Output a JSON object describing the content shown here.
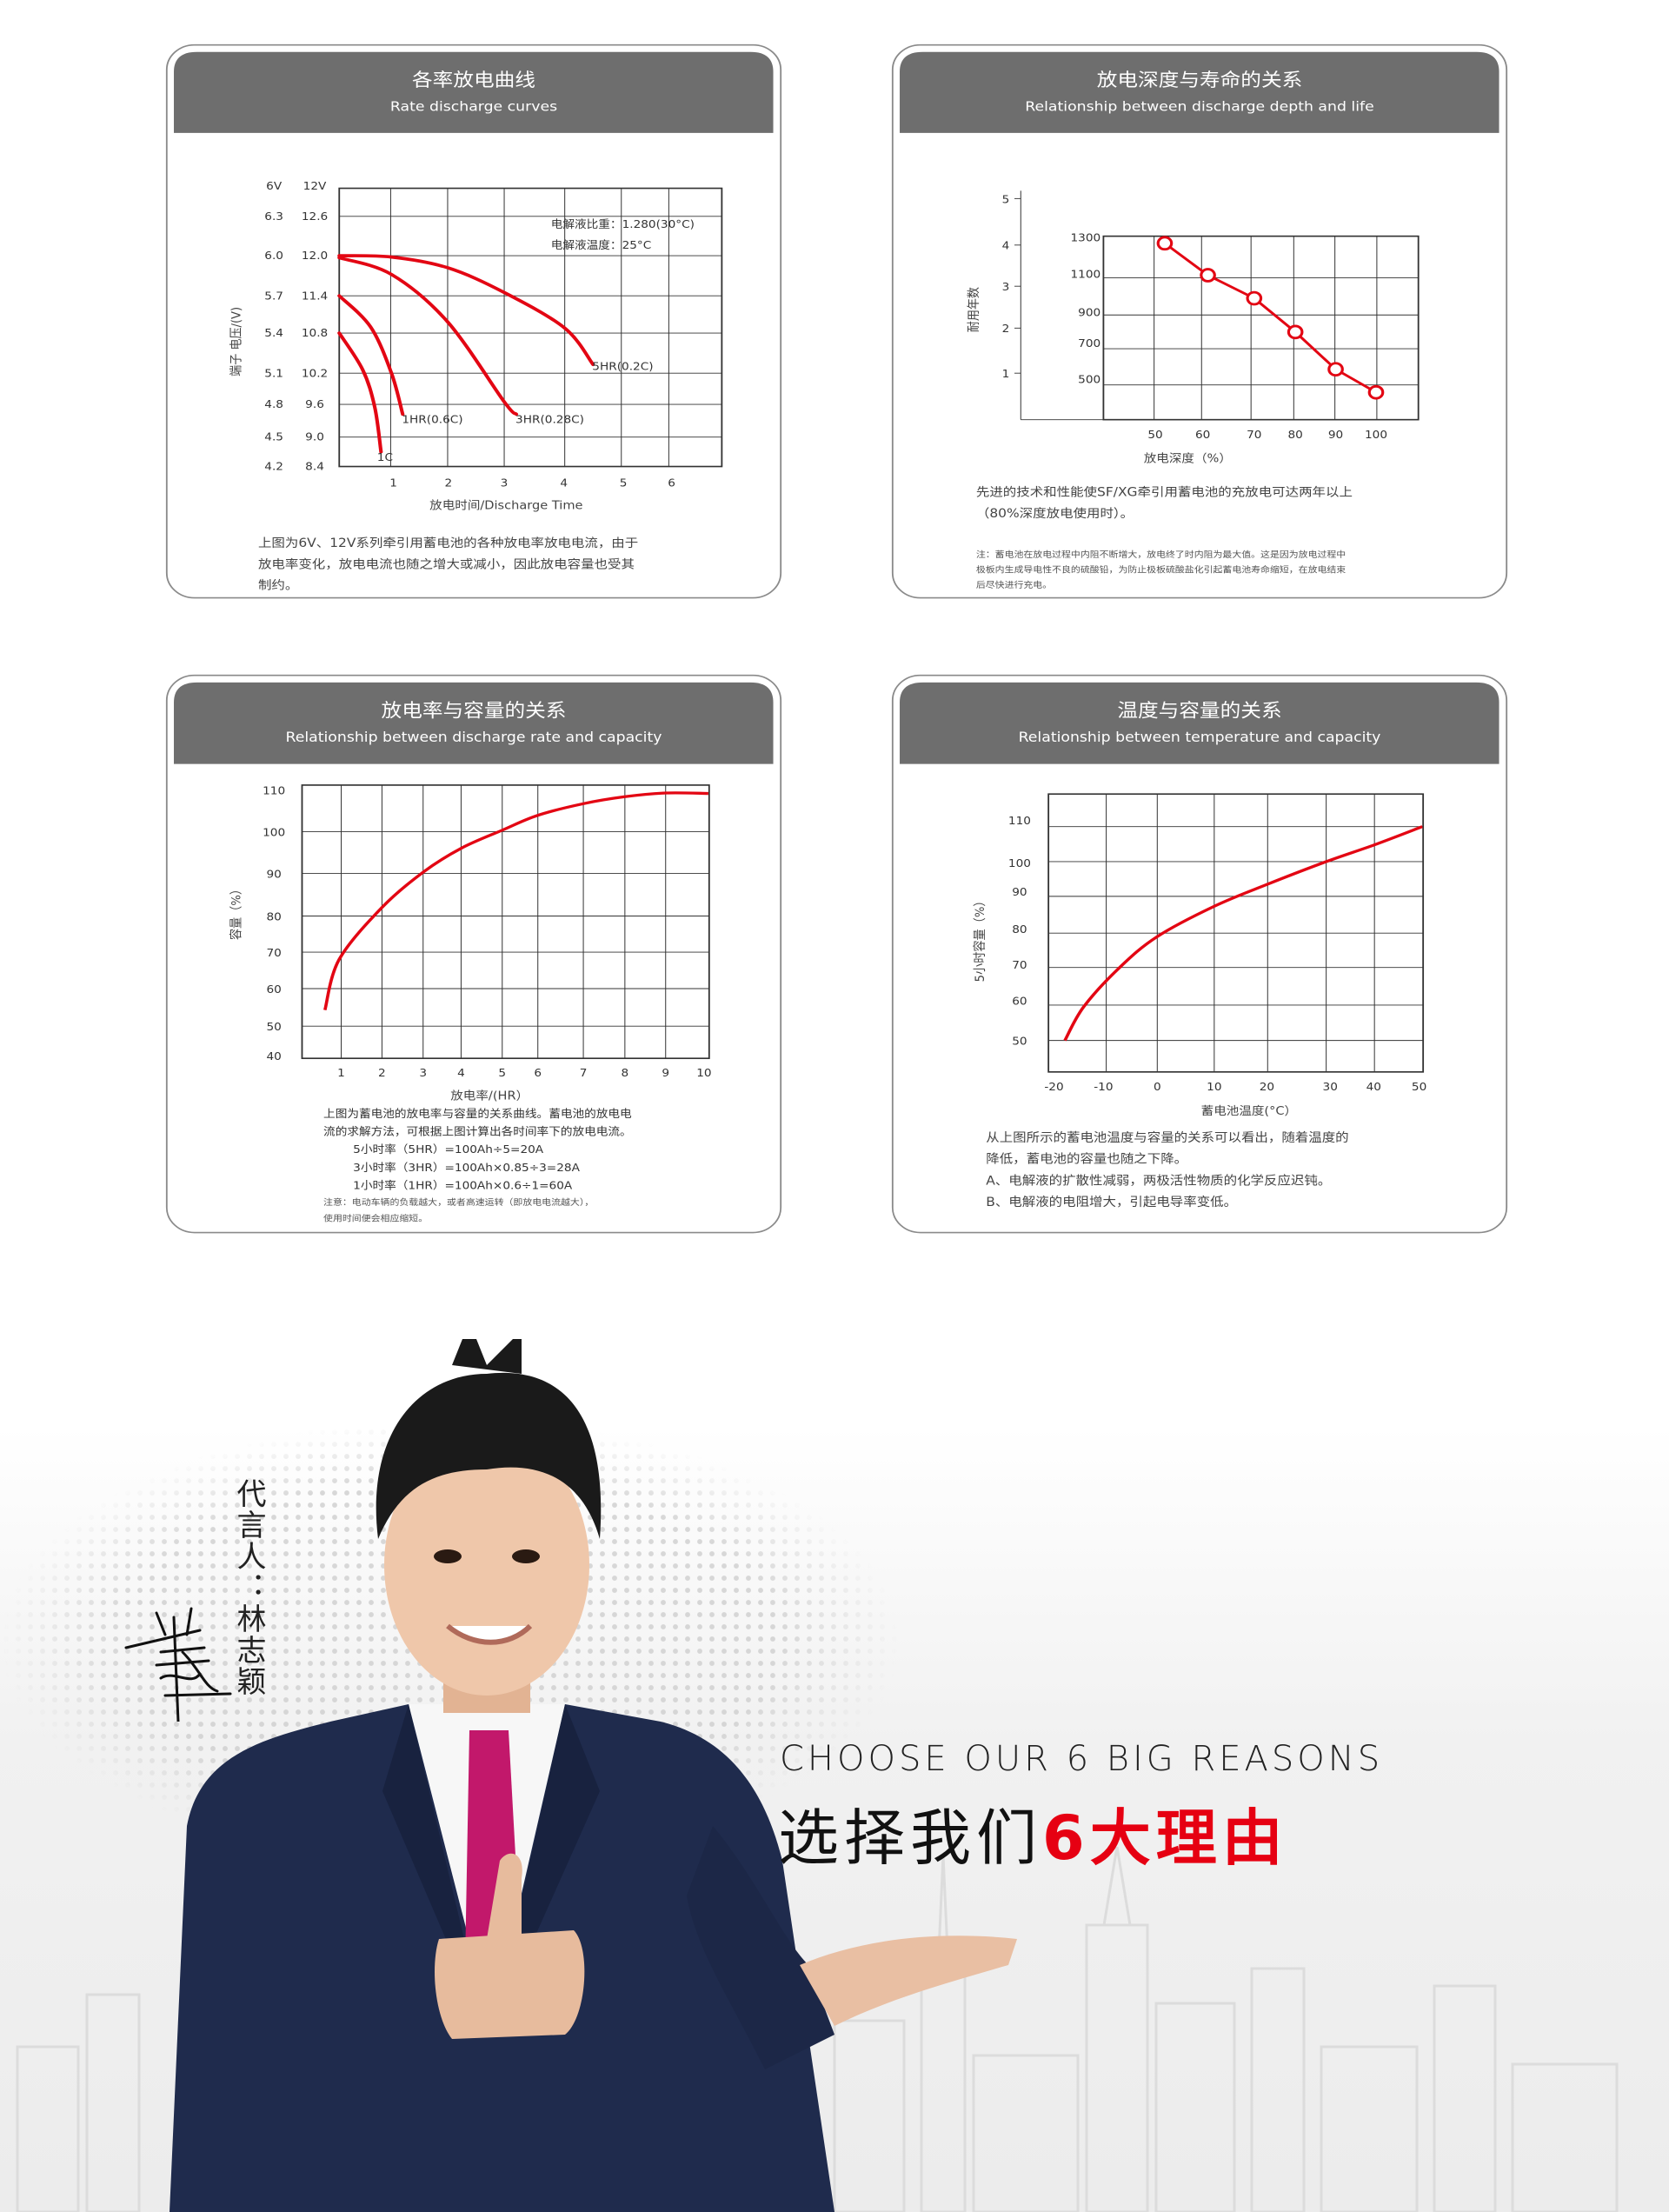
{
  "colors": {
    "header_bg": "#6e6e6e",
    "curve": "#e30613",
    "accent_red": "#e60012"
  },
  "panels": [
    {
      "title_cn": "各率放电曲线",
      "title_en": "Rate discharge curves",
      "desc": [
        "上图为6V、12V系列牵引用蓄电池的各种放电率放电电流，由于",
        "放电率变化，放电电流也随之增大或减小，因此放电容量也受其",
        "制约。"
      ]
    },
    {
      "title_cn": "放电深度与寿命的关系",
      "title_en": "Relationship between discharge depth and life",
      "desc": [
        "先进的技术和性能使SF/XG牵引用蓄电池的充放电可达两年以上",
        "（80%深度放电使用时）。"
      ],
      "note": [
        "注：蓄电池在放电过程中内阻不断增大，放电终了时内阻为最大值。这是因为放电过程中",
        "极板内生成导电性不良的硫酸铅，为防止极板硫酸盐化引起蓄电池寿命缩短，在放电结束",
        "后尽快进行充电。"
      ]
    },
    {
      "title_cn": "放电率与容量的关系",
      "title_en": "Relationship between discharge rate and capacity",
      "desc": [
        "上图为蓄电池的放电率与容量的关系曲线。蓄电池的放电电",
        "流的求解方法，可根据上图计算出各时间率下的放电电流。"
      ],
      "formulas": [
        "5小时率（5HR）=100Ah÷5=20A",
        "3小时率（3HR）=100Ah×0.85÷3=28A",
        "1小时率（1HR）=100Ah×0.6÷1=60A"
      ],
      "note": [
        "注意：电动车辆的负载越大，或者高速运转（即放电电流越大），",
        "使用时间便会相应缩短。"
      ]
    },
    {
      "title_cn": "温度与容量的关系",
      "title_en": "Relationship between temperature and capacity",
      "desc": [
        "从上图所示的蓄电池温度与容量的关系可以看出，随着温度的",
        "降低，蓄电池的容量也随之下降。",
        "A、电解液的扩散性减弱，两极活性物质的化学反应迟钝。",
        "B、电解液的电阻增大，引起电导率变低。"
      ]
    }
  ],
  "chart_data": [
    {
      "type": "line",
      "xlabel": "放电时间/Discharge Time",
      "ylabel": "端子 电压/(V)",
      "x_ticks": [
        "1",
        "2",
        "3",
        "4",
        "5",
        "6"
      ],
      "y_header": [
        "6V",
        "12V"
      ],
      "y_ticks_6v": [
        "6.3",
        "6.0",
        "5.7",
        "5.4",
        "5.1",
        "4.8",
        "4.5",
        "4.2"
      ],
      "y_ticks_12v": [
        "12.6",
        "12.0",
        "11.4",
        "10.8",
        "10.2",
        "9.6",
        "9.0",
        "8.4"
      ],
      "annotations": [
        "电解液比重：1.280(30°C)",
        "电解液温度：25°C"
      ],
      "grid": true,
      "series": [
        {
          "name": "5HR(0.2C)",
          "points": [
            [
              0,
              12.0
            ],
            [
              1,
              11.98
            ],
            [
              2,
              11.82
            ],
            [
              3,
              11.45
            ],
            [
              4,
              10.88
            ],
            [
              4.5,
              10.33
            ]
          ]
        },
        {
          "name": "3HR(0.28C)",
          "points": [
            [
              0,
              11.97
            ],
            [
              1,
              11.72
            ],
            [
              2,
              10.98
            ],
            [
              3,
              9.65
            ],
            [
              3.2,
              9.42
            ]
          ]
        },
        {
          "name": "1HR(0.6C)",
          "points": [
            [
              0,
              11.4
            ],
            [
              0.6,
              10.9
            ],
            [
              1.0,
              10.2
            ],
            [
              1.2,
              9.42
            ]
          ]
        },
        {
          "name": "1C",
          "points": [
            [
              0,
              10.8
            ],
            [
              0.45,
              10.25
            ],
            [
              0.68,
              9.55
            ],
            [
              0.8,
              8.7
            ]
          ]
        }
      ]
    },
    {
      "type": "line",
      "xlabel": "放电深度（%）",
      "ylabel": "耐用年数",
      "x_ticks": [
        "50",
        "60",
        "70",
        "80",
        "90",
        "100"
      ],
      "y_ticks_years": [
        "5",
        "4",
        "3",
        "2",
        "1"
      ],
      "y_ticks_cycles": [
        "1300",
        "1100",
        "900",
        "700",
        "500"
      ],
      "grid": true,
      "markers": "circle",
      "x": [
        52,
        61,
        70,
        80,
        90,
        100
      ],
      "y_cycles": [
        1270,
        1090,
        960,
        770,
        560,
        430
      ]
    },
    {
      "type": "line",
      "xlabel": "放电率/(HR）",
      "ylabel": "容量（%）",
      "x_ticks": [
        "1",
        "2",
        "3",
        "4",
        "5",
        "6",
        "7",
        "8",
        "9",
        "10"
      ],
      "y_ticks": [
        "110",
        "100",
        "90",
        "80",
        "70",
        "60",
        "50",
        "40"
      ],
      "ylim": [
        40,
        110
      ],
      "grid": true,
      "x": [
        0.6,
        0.95,
        2,
        3,
        4,
        5,
        6,
        7,
        8,
        9,
        10
      ],
      "y": [
        54.3,
        68,
        82,
        90.3,
        96,
        100.3,
        103.5,
        106,
        107.5,
        108.3,
        108.2
      ]
    },
    {
      "type": "line",
      "xlabel": "蓄电池温度(°C）",
      "ylabel": "5小时容量（%）",
      "x_ticks": [
        "-20",
        "-10",
        "0",
        "10",
        "20",
        "30",
        "40",
        "50"
      ],
      "y_ticks": [
        "110",
        "100",
        "90",
        "80",
        "70",
        "60",
        "50"
      ],
      "grid": true,
      "x": [
        -17.8,
        -14,
        -7,
        0,
        10,
        20,
        30,
        40,
        50
      ],
      "y": [
        50,
        59.5,
        70,
        79,
        87.3,
        93.5,
        100,
        104.8,
        110
      ]
    }
  ],
  "promo": {
    "endorser": "代言人：林志颖",
    "signature_text": "林志颖",
    "reasons_en": "CHOOSE OUR 6 BIG REASONS",
    "reasons_cn_plain": "选择我们",
    "reasons_cn_highlight": "6大理由"
  }
}
